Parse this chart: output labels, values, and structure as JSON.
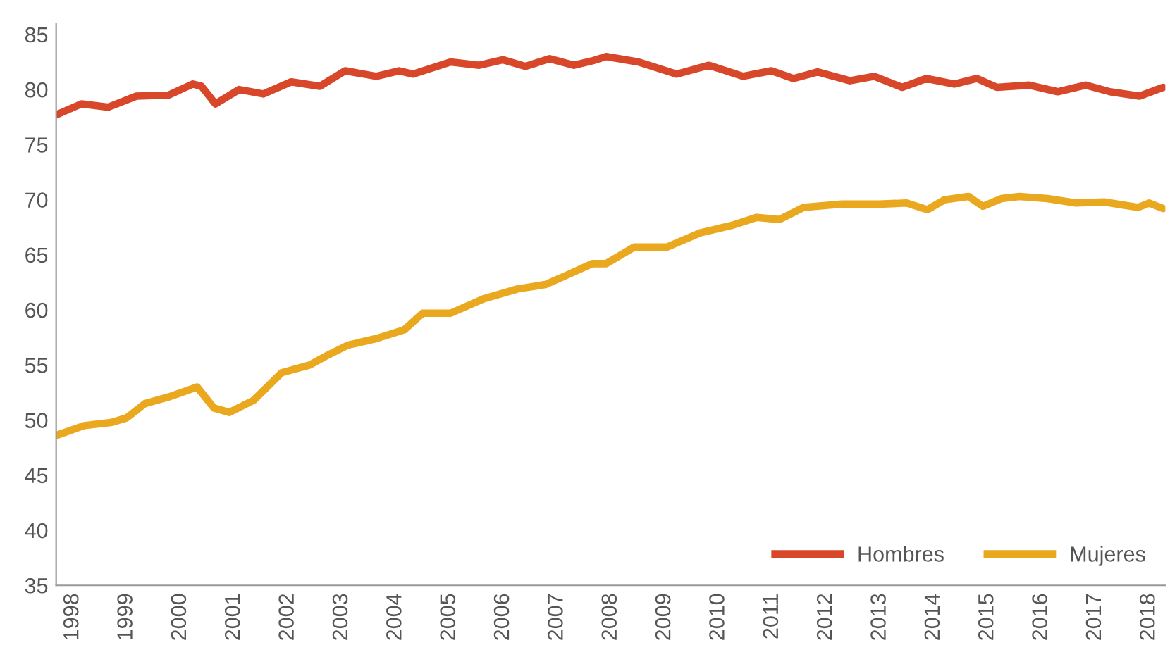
{
  "chart_data": {
    "type": "line",
    "xlim": [
      1997.69,
      2018.3
    ],
    "ylim": [
      35,
      86
    ],
    "xticks": [
      1998,
      1999,
      2000,
      2001,
      2002,
      2003,
      2004,
      2005,
      2006,
      2007,
      2008,
      2009,
      2010,
      2011,
      2012,
      2013,
      2014,
      2015,
      2016,
      2017,
      2018
    ],
    "yticks": [
      35,
      40,
      45,
      50,
      55,
      60,
      65,
      70,
      75,
      80,
      85
    ],
    "grid": false,
    "legend": "bottom right",
    "line_style": "solid",
    "marker": "none",
    "series": [
      {
        "name": "Hombres",
        "color": "#d9472b",
        "x": [
          1997.69,
          1998.16,
          1998.66,
          1999.18,
          1999.78,
          2000.23,
          2000.39,
          2000.65,
          2001.09,
          2001.54,
          2002.06,
          2002.59,
          2003.06,
          2003.64,
          2004.06,
          2004.32,
          2005.02,
          2005.55,
          2005.99,
          2006.41,
          2006.86,
          2007.31,
          2007.65,
          2007.91,
          2008.51,
          2009.22,
          2009.82,
          2010.45,
          2010.98,
          2011.39,
          2011.84,
          2012.44,
          2012.89,
          2013.41,
          2013.86,
          2014.38,
          2014.8,
          2015.17,
          2015.77,
          2016.3,
          2016.82,
          2017.27,
          2017.82,
          2018.26
        ],
        "values": [
          77.7,
          78.7,
          78.4,
          79.4,
          79.5,
          80.5,
          80.3,
          78.7,
          80.0,
          79.6,
          80.7,
          80.3,
          81.7,
          81.2,
          81.7,
          81.4,
          82.5,
          82.2,
          82.7,
          82.1,
          82.8,
          82.2,
          82.6,
          83.0,
          82.5,
          81.4,
          82.2,
          81.2,
          81.7,
          81.0,
          81.6,
          80.8,
          81.2,
          80.2,
          81.0,
          80.5,
          81.0,
          80.2,
          80.4,
          79.8,
          80.4,
          79.8,
          79.4,
          80.2
        ]
      },
      {
        "name": "Mujeres",
        "color": "#eaa81f",
        "x": [
          1997.69,
          1998.21,
          1998.73,
          1999.0,
          1999.34,
          1999.78,
          2000.31,
          2000.62,
          2000.91,
          2001.36,
          2001.88,
          2002.4,
          2002.74,
          2003.11,
          2003.64,
          2004.16,
          2004.5,
          2005.02,
          2005.63,
          2006.26,
          2006.78,
          2007.2,
          2007.65,
          2007.91,
          2008.43,
          2009.04,
          2009.66,
          2010.27,
          2010.71,
          2011.13,
          2011.58,
          2012.29,
          2012.97,
          2013.49,
          2013.88,
          2014.2,
          2014.64,
          2014.91,
          2015.25,
          2015.59,
          2016.11,
          2016.64,
          2017.16,
          2017.79,
          2018.0,
          2018.26
        ],
        "values": [
          48.6,
          49.5,
          49.8,
          50.2,
          51.5,
          52.1,
          53.0,
          51.1,
          50.7,
          51.8,
          54.3,
          55.0,
          55.9,
          56.8,
          57.4,
          58.2,
          59.7,
          59.7,
          61.0,
          61.9,
          62.3,
          63.2,
          64.2,
          64.2,
          65.7,
          65.7,
          67.0,
          67.7,
          68.4,
          68.2,
          69.3,
          69.6,
          69.6,
          69.7,
          69.1,
          70.0,
          70.3,
          69.4,
          70.1,
          70.3,
          70.1,
          69.7,
          69.8,
          69.3,
          69.7,
          69.2
        ]
      }
    ]
  }
}
